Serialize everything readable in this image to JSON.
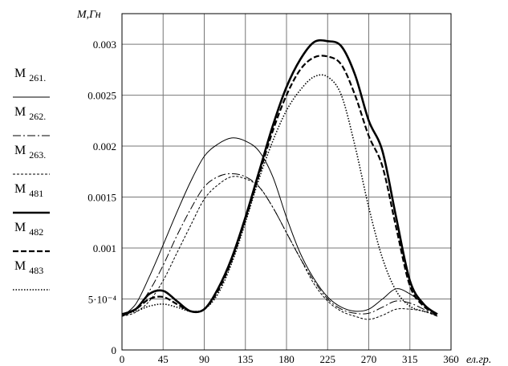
{
  "chart_data": {
    "type": "line",
    "ylabel": "M,Гн",
    "xlabel": "ел.гр.",
    "xlim": [
      0,
      360
    ],
    "ylim": [
      0,
      0.0033
    ],
    "x_ticks": [
      0,
      45,
      90,
      135,
      180,
      225,
      270,
      315,
      360
    ],
    "x_tick_labels": [
      "0",
      "45",
      "90",
      "135",
      "180",
      "225",
      "270",
      "315",
      "360"
    ],
    "y_ticks": [
      0,
      0.0005,
      0.001,
      0.0015,
      0.002,
      0.0025,
      0.003
    ],
    "y_tick_labels": [
      "0",
      "5·10⁻⁴",
      "0.001",
      "0.0015",
      "0.002",
      "0.0025",
      "0.003"
    ],
    "grid": true,
    "legend_position": "left",
    "x": [
      0,
      15,
      30,
      45,
      60,
      75,
      90,
      105,
      120,
      135,
      150,
      165,
      180,
      195,
      210,
      225,
      240,
      255,
      270,
      285,
      300,
      315,
      330,
      345
    ],
    "series": [
      {
        "name": "M",
        "sub": "261.",
        "style": "thin-solid",
        "values": [
          0.00033,
          0.00045,
          0.00072,
          0.00103,
          0.00135,
          0.00165,
          0.0019,
          0.00202,
          0.00208,
          0.00205,
          0.00195,
          0.0017,
          0.0013,
          0.00095,
          0.0007,
          0.00052,
          0.00042,
          0.00038,
          0.0004,
          0.0005,
          0.0006,
          0.00055,
          0.00045,
          0.00033
        ]
      },
      {
        "name": "M",
        "sub": "262.",
        "style": "dash-dot",
        "values": [
          0.00033,
          0.0004,
          0.00058,
          0.00083,
          0.00112,
          0.00138,
          0.0016,
          0.0017,
          0.00173,
          0.0017,
          0.0016,
          0.0014,
          0.00115,
          0.0009,
          0.00068,
          0.0005,
          0.0004,
          0.00036,
          0.00036,
          0.00042,
          0.00048,
          0.00046,
          0.0004,
          0.00033
        ]
      },
      {
        "name": "M",
        "sub": "263.",
        "style": "thin-dashed",
        "values": [
          0.00033,
          0.00037,
          0.00048,
          0.00068,
          0.00095,
          0.00122,
          0.00148,
          0.00162,
          0.0017,
          0.00168,
          0.0016,
          0.0014,
          0.00115,
          0.0009,
          0.00065,
          0.00048,
          0.00038,
          0.00033,
          0.0003,
          0.00034,
          0.0004,
          0.0004,
          0.00038,
          0.00033
        ]
      },
      {
        "name": "M",
        "sub": "481",
        "style": "thick-solid",
        "values": [
          0.00035,
          0.0004,
          0.00055,
          0.00058,
          0.00048,
          0.00038,
          0.0004,
          0.0006,
          0.0009,
          0.0013,
          0.00175,
          0.0022,
          0.00258,
          0.00285,
          0.00302,
          0.00303,
          0.00298,
          0.0027,
          0.00225,
          0.00195,
          0.0013,
          0.00068,
          0.00045,
          0.00035
        ]
      },
      {
        "name": "M",
        "sub": "482",
        "style": "thick-dashed",
        "values": [
          0.00035,
          0.0004,
          0.0005,
          0.00052,
          0.00045,
          0.00038,
          0.0004,
          0.00058,
          0.00088,
          0.00128,
          0.00172,
          0.00215,
          0.0025,
          0.00275,
          0.00287,
          0.00288,
          0.0028,
          0.0025,
          0.0021,
          0.0018,
          0.0012,
          0.00063,
          0.00043,
          0.00035
        ]
      },
      {
        "name": "M",
        "sub": "483",
        "style": "dotted",
        "values": [
          0.00035,
          0.00038,
          0.00043,
          0.00045,
          0.00042,
          0.00038,
          0.0004,
          0.00055,
          0.00085,
          0.00125,
          0.00168,
          0.00205,
          0.00235,
          0.00255,
          0.00268,
          0.00268,
          0.0025,
          0.002,
          0.0014,
          0.0009,
          0.00058,
          0.00043,
          0.00038,
          0.00035
        ]
      }
    ]
  }
}
